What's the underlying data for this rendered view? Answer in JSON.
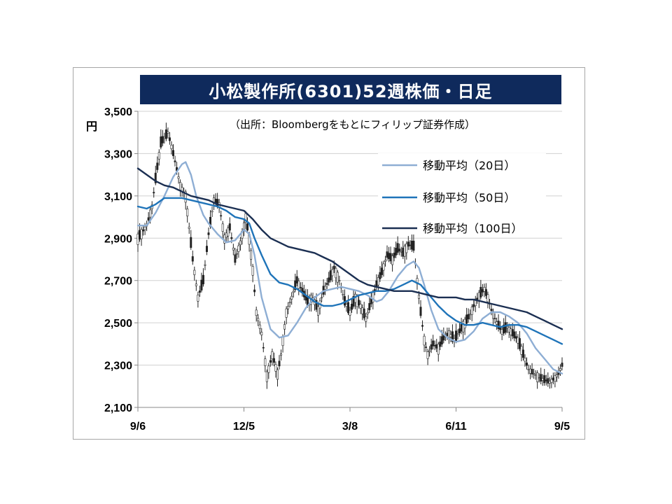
{
  "chart_data": {
    "type": "line",
    "title": "小松製作所(6301)52週株価・日足",
    "source_note": "（出所：Bloombergをもとにフィリップ証券作成）",
    "y_unit": "円",
    "ylim": [
      2100,
      3500
    ],
    "y_ticks": [
      "3,500",
      "3,300",
      "3,100",
      "2,900",
      "2,700",
      "2,500",
      "2,300",
      "2,100"
    ],
    "y_tick_values": [
      3500,
      3300,
      3100,
      2900,
      2700,
      2500,
      2300,
      2100
    ],
    "x_ticks": [
      "9/6",
      "12/5",
      "3/8",
      "6/11",
      "9/5"
    ],
    "x_tick_index": [
      0,
      60,
      120,
      180,
      240
    ],
    "grid": true,
    "legend_position": "top-right",
    "colors": {
      "ma20": "#8eaed4",
      "ma50": "#1f74b9",
      "ma100": "#1b2f52",
      "candle": "#222222",
      "title_bg": "#0f2a5c",
      "grid": "#d0d0d0"
    },
    "price": [
      {
        "x": 0,
        "y": 2900
      },
      {
        "x": 5,
        "y": 2960
      },
      {
        "x": 8,
        "y": 3050
      },
      {
        "x": 10,
        "y": 3180
      },
      {
        "x": 13,
        "y": 3350
      },
      {
        "x": 17,
        "y": 3400
      },
      {
        "x": 20,
        "y": 3300
      },
      {
        "x": 24,
        "y": 3150
      },
      {
        "x": 27,
        "y": 3100
      },
      {
        "x": 29,
        "y": 2950
      },
      {
        "x": 31,
        "y": 2800
      },
      {
        "x": 34,
        "y": 2620
      },
      {
        "x": 37,
        "y": 2700
      },
      {
        "x": 40,
        "y": 2920
      },
      {
        "x": 43,
        "y": 3080
      },
      {
        "x": 46,
        "y": 3060
      },
      {
        "x": 49,
        "y": 2900
      },
      {
        "x": 52,
        "y": 2950
      },
      {
        "x": 55,
        "y": 2800
      },
      {
        "x": 58,
        "y": 2880
      },
      {
        "x": 61,
        "y": 3000
      },
      {
        "x": 63,
        "y": 2900
      },
      {
        "x": 65,
        "y": 2750
      },
      {
        "x": 67,
        "y": 2550
      },
      {
        "x": 70,
        "y": 2450
      },
      {
        "x": 73,
        "y": 2250
      },
      {
        "x": 76,
        "y": 2350
      },
      {
        "x": 79,
        "y": 2260
      },
      {
        "x": 81,
        "y": 2350
      },
      {
        "x": 84,
        "y": 2550
      },
      {
        "x": 87,
        "y": 2620
      },
      {
        "x": 90,
        "y": 2700
      },
      {
        "x": 93,
        "y": 2650
      },
      {
        "x": 96,
        "y": 2600
      },
      {
        "x": 99,
        "y": 2620
      },
      {
        "x": 102,
        "y": 2560
      },
      {
        "x": 105,
        "y": 2650
      },
      {
        "x": 108,
        "y": 2700
      },
      {
        "x": 111,
        "y": 2760
      },
      {
        "x": 114,
        "y": 2700
      },
      {
        "x": 117,
        "y": 2600
      },
      {
        "x": 120,
        "y": 2550
      },
      {
        "x": 123,
        "y": 2620
      },
      {
        "x": 126,
        "y": 2580
      },
      {
        "x": 129,
        "y": 2520
      },
      {
        "x": 132,
        "y": 2600
      },
      {
        "x": 135,
        "y": 2680
      },
      {
        "x": 138,
        "y": 2740
      },
      {
        "x": 141,
        "y": 2820
      },
      {
        "x": 144,
        "y": 2800
      },
      {
        "x": 147,
        "y": 2850
      },
      {
        "x": 150,
        "y": 2830
      },
      {
        "x": 153,
        "y": 2870
      },
      {
        "x": 156,
        "y": 2860
      },
      {
        "x": 158,
        "y": 2700
      },
      {
        "x": 160,
        "y": 2550
      },
      {
        "x": 162,
        "y": 2420
      },
      {
        "x": 164,
        "y": 2350
      },
      {
        "x": 167,
        "y": 2400
      },
      {
        "x": 170,
        "y": 2380
      },
      {
        "x": 173,
        "y": 2430
      },
      {
        "x": 176,
        "y": 2450
      },
      {
        "x": 179,
        "y": 2420
      },
      {
        "x": 182,
        "y": 2460
      },
      {
        "x": 185,
        "y": 2500
      },
      {
        "x": 188,
        "y": 2540
      },
      {
        "x": 191,
        "y": 2600
      },
      {
        "x": 194,
        "y": 2640
      },
      {
        "x": 196,
        "y": 2660
      },
      {
        "x": 198,
        "y": 2620
      },
      {
        "x": 200,
        "y": 2560
      },
      {
        "x": 203,
        "y": 2500
      },
      {
        "x": 206,
        "y": 2460
      },
      {
        "x": 209,
        "y": 2480
      },
      {
        "x": 212,
        "y": 2450
      },
      {
        "x": 215,
        "y": 2420
      },
      {
        "x": 218,
        "y": 2350
      },
      {
        "x": 221,
        "y": 2280
      },
      {
        "x": 224,
        "y": 2260
      },
      {
        "x": 227,
        "y": 2240
      },
      {
        "x": 230,
        "y": 2230
      },
      {
        "x": 233,
        "y": 2220
      },
      {
        "x": 236,
        "y": 2240
      },
      {
        "x": 238,
        "y": 2260
      },
      {
        "x": 240,
        "y": 2300
      }
    ],
    "series": [
      {
        "name": "移動平均（20日）",
        "key": "ma20",
        "points": [
          {
            "x": 0,
            "y": 2960
          },
          {
            "x": 5,
            "y": 2960
          },
          {
            "x": 10,
            "y": 3020
          },
          {
            "x": 15,
            "y": 3100
          },
          {
            "x": 20,
            "y": 3190
          },
          {
            "x": 25,
            "y": 3250
          },
          {
            "x": 27,
            "y": 3260
          },
          {
            "x": 30,
            "y": 3200
          },
          {
            "x": 33,
            "y": 3100
          },
          {
            "x": 37,
            "y": 3010
          },
          {
            "x": 40,
            "y": 2970
          },
          {
            "x": 45,
            "y": 2920
          },
          {
            "x": 50,
            "y": 2880
          },
          {
            "x": 55,
            "y": 2890
          },
          {
            "x": 60,
            "y": 2940
          },
          {
            "x": 63,
            "y": 2920
          },
          {
            "x": 66,
            "y": 2820
          },
          {
            "x": 70,
            "y": 2620
          },
          {
            "x": 75,
            "y": 2470
          },
          {
            "x": 80,
            "y": 2430
          },
          {
            "x": 85,
            "y": 2440
          },
          {
            "x": 90,
            "y": 2500
          },
          {
            "x": 95,
            "y": 2570
          },
          {
            "x": 100,
            "y": 2620
          },
          {
            "x": 105,
            "y": 2650
          },
          {
            "x": 110,
            "y": 2660
          },
          {
            "x": 115,
            "y": 2670
          },
          {
            "x": 120,
            "y": 2660
          },
          {
            "x": 125,
            "y": 2650
          },
          {
            "x": 130,
            "y": 2630
          },
          {
            "x": 135,
            "y": 2600
          },
          {
            "x": 138,
            "y": 2610
          },
          {
            "x": 142,
            "y": 2650
          },
          {
            "x": 147,
            "y": 2720
          },
          {
            "x": 152,
            "y": 2770
          },
          {
            "x": 156,
            "y": 2790
          },
          {
            "x": 159,
            "y": 2760
          },
          {
            "x": 162,
            "y": 2680
          },
          {
            "x": 166,
            "y": 2560
          },
          {
            "x": 170,
            "y": 2470
          },
          {
            "x": 175,
            "y": 2430
          },
          {
            "x": 180,
            "y": 2410
          },
          {
            "x": 185,
            "y": 2420
          },
          {
            "x": 190,
            "y": 2460
          },
          {
            "x": 195,
            "y": 2520
          },
          {
            "x": 200,
            "y": 2550
          },
          {
            "x": 205,
            "y": 2550
          },
          {
            "x": 210,
            "y": 2530
          },
          {
            "x": 215,
            "y": 2500
          },
          {
            "x": 220,
            "y": 2450
          },
          {
            "x": 225,
            "y": 2380
          },
          {
            "x": 230,
            "y": 2330
          },
          {
            "x": 235,
            "y": 2280
          },
          {
            "x": 240,
            "y": 2260
          }
        ]
      },
      {
        "name": "移動平均（50日）",
        "key": "ma50",
        "points": [
          {
            "x": 0,
            "y": 3050
          },
          {
            "x": 5,
            "y": 3040
          },
          {
            "x": 10,
            "y": 3060
          },
          {
            "x": 15,
            "y": 3090
          },
          {
            "x": 20,
            "y": 3090
          },
          {
            "x": 25,
            "y": 3090
          },
          {
            "x": 30,
            "y": 3080
          },
          {
            "x": 35,
            "y": 3070
          },
          {
            "x": 40,
            "y": 3060
          },
          {
            "x": 45,
            "y": 3050
          },
          {
            "x": 50,
            "y": 3030
          },
          {
            "x": 55,
            "y": 3000
          },
          {
            "x": 60,
            "y": 2990
          },
          {
            "x": 63,
            "y": 2970
          },
          {
            "x": 66,
            "y": 2900
          },
          {
            "x": 70,
            "y": 2820
          },
          {
            "x": 75,
            "y": 2730
          },
          {
            "x": 80,
            "y": 2690
          },
          {
            "x": 85,
            "y": 2680
          },
          {
            "x": 90,
            "y": 2660
          },
          {
            "x": 95,
            "y": 2630
          },
          {
            "x": 100,
            "y": 2600
          },
          {
            "x": 105,
            "y": 2580
          },
          {
            "x": 110,
            "y": 2580
          },
          {
            "x": 115,
            "y": 2590
          },
          {
            "x": 120,
            "y": 2610
          },
          {
            "x": 125,
            "y": 2630
          },
          {
            "x": 130,
            "y": 2640
          },
          {
            "x": 135,
            "y": 2650
          },
          {
            "x": 140,
            "y": 2650
          },
          {
            "x": 145,
            "y": 2660
          },
          {
            "x": 150,
            "y": 2680
          },
          {
            "x": 155,
            "y": 2700
          },
          {
            "x": 160,
            "y": 2680
          },
          {
            "x": 165,
            "y": 2630
          },
          {
            "x": 170,
            "y": 2580
          },
          {
            "x": 175,
            "y": 2540
          },
          {
            "x": 180,
            "y": 2510
          },
          {
            "x": 185,
            "y": 2490
          },
          {
            "x": 190,
            "y": 2490
          },
          {
            "x": 195,
            "y": 2500
          },
          {
            "x": 200,
            "y": 2490
          },
          {
            "x": 205,
            "y": 2480
          },
          {
            "x": 210,
            "y": 2490
          },
          {
            "x": 215,
            "y": 2490
          },
          {
            "x": 220,
            "y": 2480
          },
          {
            "x": 225,
            "y": 2460
          },
          {
            "x": 230,
            "y": 2440
          },
          {
            "x": 235,
            "y": 2420
          },
          {
            "x": 240,
            "y": 2400
          }
        ]
      },
      {
        "name": "移動平均（100日）",
        "key": "ma100",
        "points": [
          {
            "x": 0,
            "y": 3230
          },
          {
            "x": 5,
            "y": 3200
          },
          {
            "x": 10,
            "y": 3170
          },
          {
            "x": 15,
            "y": 3150
          },
          {
            "x": 20,
            "y": 3140
          },
          {
            "x": 25,
            "y": 3120
          },
          {
            "x": 30,
            "y": 3100
          },
          {
            "x": 35,
            "y": 3090
          },
          {
            "x": 40,
            "y": 3080
          },
          {
            "x": 45,
            "y": 3060
          },
          {
            "x": 50,
            "y": 3050
          },
          {
            "x": 55,
            "y": 3040
          },
          {
            "x": 60,
            "y": 3030
          },
          {
            "x": 65,
            "y": 2990
          },
          {
            "x": 70,
            "y": 2940
          },
          {
            "x": 75,
            "y": 2900
          },
          {
            "x": 80,
            "y": 2880
          },
          {
            "x": 85,
            "y": 2860
          },
          {
            "x": 90,
            "y": 2850
          },
          {
            "x": 95,
            "y": 2840
          },
          {
            "x": 100,
            "y": 2830
          },
          {
            "x": 105,
            "y": 2810
          },
          {
            "x": 110,
            "y": 2790
          },
          {
            "x": 115,
            "y": 2760
          },
          {
            "x": 120,
            "y": 2730
          },
          {
            "x": 125,
            "y": 2700
          },
          {
            "x": 130,
            "y": 2680
          },
          {
            "x": 135,
            "y": 2670
          },
          {
            "x": 140,
            "y": 2660
          },
          {
            "x": 145,
            "y": 2650
          },
          {
            "x": 150,
            "y": 2650
          },
          {
            "x": 155,
            "y": 2650
          },
          {
            "x": 160,
            "y": 2640
          },
          {
            "x": 165,
            "y": 2630
          },
          {
            "x": 170,
            "y": 2620
          },
          {
            "x": 175,
            "y": 2620
          },
          {
            "x": 180,
            "y": 2620
          },
          {
            "x": 185,
            "y": 2610
          },
          {
            "x": 190,
            "y": 2610
          },
          {
            "x": 195,
            "y": 2600
          },
          {
            "x": 200,
            "y": 2590
          },
          {
            "x": 205,
            "y": 2580
          },
          {
            "x": 210,
            "y": 2570
          },
          {
            "x": 215,
            "y": 2560
          },
          {
            "x": 220,
            "y": 2550
          },
          {
            "x": 225,
            "y": 2530
          },
          {
            "x": 230,
            "y": 2510
          },
          {
            "x": 235,
            "y": 2490
          },
          {
            "x": 240,
            "y": 2470
          }
        ]
      }
    ]
  }
}
